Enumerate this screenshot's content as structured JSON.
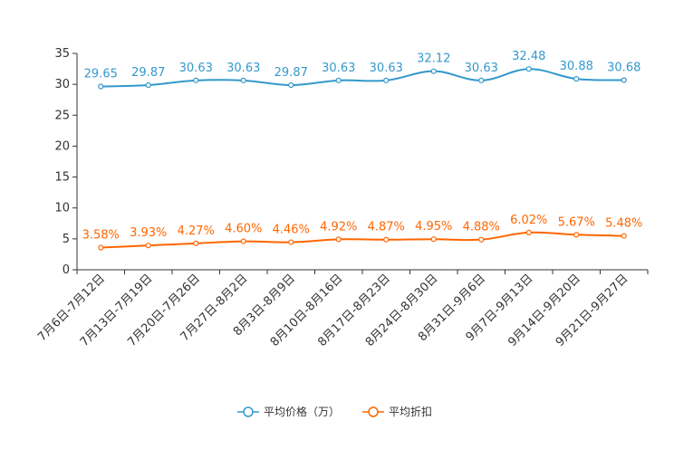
{
  "chart_data": {
    "type": "line",
    "title": "",
    "xlabel": "",
    "ylabel": "",
    "ylim": [
      0,
      35
    ],
    "yticks": [
      "0",
      "5",
      "10",
      "15",
      "20",
      "25",
      "30",
      "35"
    ],
    "categories": [
      "7月6日-7月12日",
      "7月13日-7月19日",
      "7月20日-7月26日",
      "7月27日-8月2日",
      "8月3日-8月9日",
      "8月10日-8月16日",
      "8月17日-8月23日",
      "8月24日-8月30日",
      "8月31日-9月6日",
      "9月7日-9月13日",
      "9月14日-9月20日",
      "9月21日-9月27日"
    ],
    "series": [
      {
        "name": "平均价格（万）",
        "color": "#3399cc",
        "values": [
          29.65,
          29.87,
          30.63,
          30.63,
          29.87,
          30.63,
          30.63,
          32.12,
          30.63,
          32.48,
          30.88,
          30.68
        ],
        "labels": [
          "29.65",
          "29.87",
          "30.63",
          "30.63",
          "29.87",
          "30.63",
          "30.63",
          "32.12",
          "30.63",
          "32.48",
          "30.88",
          "30.68"
        ]
      },
      {
        "name": "平均折扣",
        "color": "#ff6600",
        "values": [
          3.58,
          3.93,
          4.27,
          4.6,
          4.46,
          4.92,
          4.87,
          4.95,
          4.88,
          6.02,
          5.67,
          5.48
        ],
        "labels": [
          "3.58%",
          "3.93%",
          "4.27%",
          "4.60%",
          "4.46%",
          "4.92%",
          "4.87%",
          "4.95%",
          "4.88%",
          "6.02%",
          "5.67%",
          "5.48%"
        ]
      }
    ],
    "legend_position": "bottom-center",
    "grid": false
  }
}
